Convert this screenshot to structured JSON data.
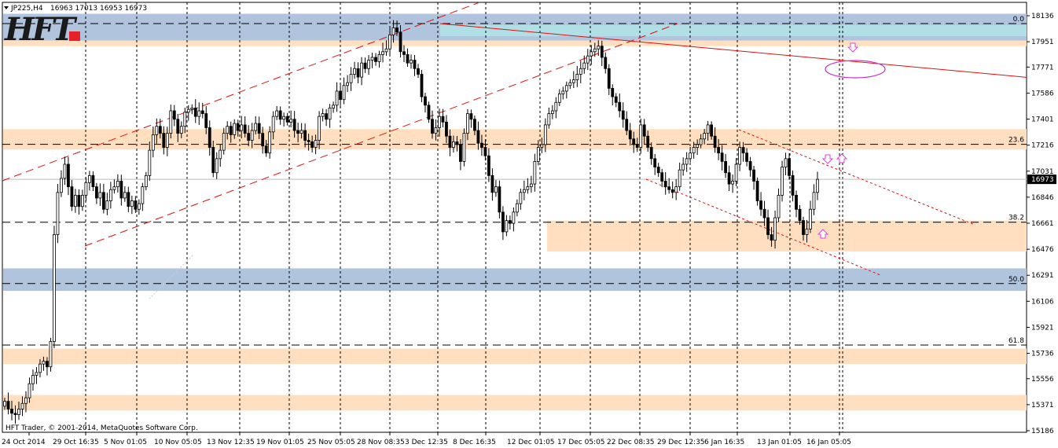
{
  "header": {
    "symbol": "JP225,H4",
    "ohlc": "16963 17013 16953 16973"
  },
  "logo": {
    "text": "HFT",
    "dot_color": "#e8202a"
  },
  "copyright": "HFT Trader, © 2001-2014, MetaQuotes Software Corp.",
  "chart_data": {
    "type": "candlestick",
    "symbol": "JP225",
    "timeframe": "H4",
    "y_ticks": [
      18136,
      17951,
      17771,
      17586,
      17401,
      17216,
      17031,
      16846,
      16661,
      16476,
      16291,
      16106,
      15921,
      15736,
      15556,
      15371,
      15186
    ],
    "ylim": [
      15160,
      18160
    ],
    "x_ticks": [
      "24 Oct 2014",
      "29 Oct 16:35",
      "5 Nov 01:05",
      "10 Nov 05:05",
      "13 Nov 12:35",
      "19 Nov 01:05",
      "25 Nov 05:05",
      "28 Nov 08:35",
      "3 Dec 12:35",
      "8 Dec 16:35",
      "12 Dec 01:05",
      "17 Dec 05:05",
      "22 Dec 08:35",
      "29 Dec 12:35",
      "6 Jan 16:35",
      "13 Jan 01:05",
      "16 Jan 05:05"
    ],
    "current_price": 16973,
    "fibonacci_levels": [
      {
        "label": "0.0",
        "price": 18080
      },
      {
        "label": "23.6",
        "price": 17222
      },
      {
        "label": "38.2",
        "price": 16668
      },
      {
        "label": "50.0",
        "price": 16232
      },
      {
        "label": "61.8",
        "price": 15795
      }
    ],
    "zones": [
      {
        "color": "#b0c4de",
        "from": 17960,
        "to": 18150
      },
      {
        "color": "#b0e0e6",
        "from": 17990,
        "to": 18070
      },
      {
        "color": "#ffdfbf",
        "from": 17920,
        "to": 17960
      },
      {
        "color": "#ffdfbf",
        "from": 17185,
        "to": 17330
      },
      {
        "color": "#ffdfbf",
        "from": 16460,
        "to": 16680
      },
      {
        "color": "#b0c4de",
        "from": 16180,
        "to": 16340
      },
      {
        "color": "#ffdfbf",
        "from": 15660,
        "to": 15770
      },
      {
        "color": "#ffdfbf",
        "from": 15330,
        "to": 15440
      }
    ],
    "closes": [
      15395,
      15340,
      15310,
      15300,
      15340,
      15380,
      15420,
      15520,
      15580,
      15600,
      15660,
      15680,
      15640,
      15820,
      16580,
      16880,
      16980,
      17080,
      16920,
      16780,
      16860,
      16780,
      16860,
      16950,
      17000,
      16920,
      16840,
      16880,
      16760,
      16820,
      16900,
      16920,
      16960,
      16840,
      16880,
      16780,
      16820,
      16760,
      16800,
      16920,
      17000,
      17180,
      17290,
      17350,
      17300,
      17200,
      17300,
      17460,
      17400,
      17300,
      17350,
      17450,
      17470,
      17480,
      17420,
      17460,
      17440,
      17340,
      17200,
      17020,
      17120,
      17180,
      17300,
      17350,
      17290,
      17370,
      17320,
      17360,
      17300,
      17250,
      17320,
      17370,
      17300,
      17210,
      17160,
      17310,
      17420,
      17460,
      17400,
      17420,
      17380,
      17400,
      17320,
      17300,
      17320,
      17250,
      17240,
      17200,
      17250,
      17420,
      17440,
      17400,
      17480,
      17500,
      17600,
      17540,
      17640,
      17660,
      17720,
      17760,
      17700,
      17800,
      17760,
      17820,
      17840,
      17810,
      17860,
      17880,
      17900,
      18000,
      18050,
      18020,
      17880,
      17860,
      17800,
      17820,
      17760,
      17720,
      17560,
      17500,
      17400,
      17300,
      17340,
      17420,
      17380,
      17280,
      17200,
      17240,
      17220,
      17100,
      17300,
      17440,
      17400,
      17320,
      17230,
      17200,
      17140,
      17000,
      16880,
      16920,
      16740,
      16600,
      16680,
      16660,
      16740,
      16800,
      16880,
      16900,
      16920,
      16940,
      17100,
      17200,
      17220,
      17360,
      17440,
      17460,
      17520,
      17580,
      17600,
      17640,
      17660,
      17680,
      17720,
      17760,
      17800,
      17850,
      17880,
      17900,
      17920,
      17840,
      17760,
      17620,
      17560,
      17520,
      17460,
      17400,
      17320,
      17260,
      17220,
      17200,
      17360,
      17280,
      17200,
      17120,
      17060,
      17020,
      16960,
      16920,
      16900,
      16880,
      16920,
      17040,
      17080,
      17120,
      17160,
      17200,
      17220,
      17260,
      17300,
      17360,
      17280,
      17200,
      17160,
      17100,
      17020,
      16940,
      16960,
      17080,
      17200,
      17160,
      17100,
      17040,
      16960,
      16820,
      16760,
      16700,
      16580,
      16540,
      16700,
      16860,
      17060,
      17120,
      17000,
      16860,
      16760,
      16680,
      16580,
      16620,
      16760,
      16880,
      16973
    ]
  }
}
